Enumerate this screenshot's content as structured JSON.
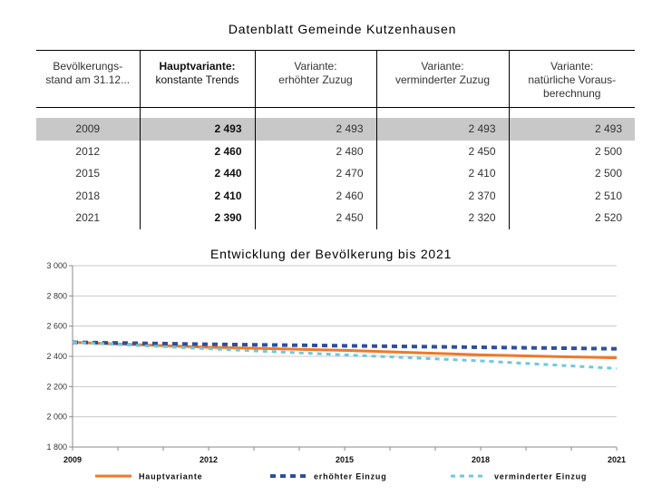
{
  "header": {
    "title": "Datenblatt Gemeinde Kutzenhausen"
  },
  "table": {
    "columns": [
      {
        "line1": "Bevölkerungs-",
        "line2": "stand am 31.12...",
        "line3": ""
      },
      {
        "line1": "Hauptvariante:",
        "line2": "konstante Trends",
        "line3": ""
      },
      {
        "line1": "Variante:",
        "line2": "erhöhter Zuzug",
        "line3": ""
      },
      {
        "line1": "Variante:",
        "line2": "verminderter Zuzug",
        "line3": ""
      },
      {
        "line1": "Variante:",
        "line2": "natürliche Voraus-",
        "line3": "berechnung"
      }
    ],
    "rows": [
      {
        "year": "2009",
        "haupt": "2 493",
        "erhoeht": "2 493",
        "vermindert": "2 493",
        "natuerlich": "2 493"
      },
      {
        "year": "2012",
        "haupt": "2 460",
        "erhoeht": "2 480",
        "vermindert": "2 450",
        "natuerlich": "2 500"
      },
      {
        "year": "2015",
        "haupt": "2 440",
        "erhoeht": "2 470",
        "vermindert": "2 410",
        "natuerlich": "2 500"
      },
      {
        "year": "2018",
        "haupt": "2 410",
        "erhoeht": "2 460",
        "vermindert": "2 370",
        "natuerlich": "2 510"
      },
      {
        "year": "2021",
        "haupt": "2 390",
        "erhoeht": "2 450",
        "vermindert": "2 320",
        "natuerlich": "2 520"
      }
    ]
  },
  "chart_data": {
    "type": "line",
    "title": "Entwicklung der Bevölkerung bis 2021",
    "xlabel": "",
    "ylabel": "",
    "x": [
      2009,
      2012,
      2015,
      2018,
      2021
    ],
    "x_tick_labels": [
      "2009",
      "2012",
      "2015",
      "2018",
      "2021"
    ],
    "xlim": [
      2009,
      2021
    ],
    "ylim": [
      1800,
      3000
    ],
    "y_ticks": [
      1800,
      2000,
      2200,
      2400,
      2600,
      2800,
      3000
    ],
    "y_tick_labels": [
      "1 800",
      "2 000",
      "2 200",
      "2 400",
      "2 600",
      "2 800",
      "3 000"
    ],
    "grid": true,
    "legend_position": "bottom",
    "series": [
      {
        "name": "Hauptvariante",
        "values": [
          2493,
          2460,
          2440,
          2410,
          2390
        ],
        "color": "#f07828",
        "style": "solid"
      },
      {
        "name": "erhöhter Einzug",
        "values": [
          2493,
          2480,
          2470,
          2460,
          2450
        ],
        "color": "#2e4f9c",
        "style": "dashed"
      },
      {
        "name": "verminderter  Einzug",
        "values": [
          2493,
          2450,
          2410,
          2370,
          2320
        ],
        "color": "#6fc8dc",
        "style": "dashed-light"
      }
    ]
  }
}
